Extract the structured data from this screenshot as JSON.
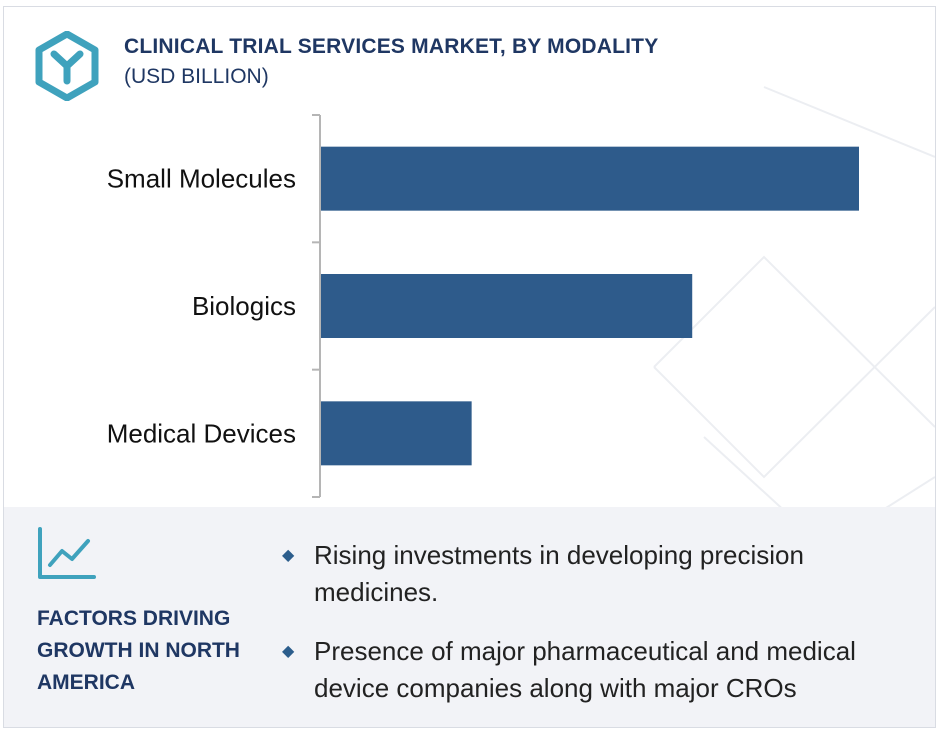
{
  "header": {
    "title": "CLINICAL TRIAL SERVICES MARKET, BY MODALITY",
    "subtitle": "(USD BILLION)"
  },
  "chart_data": {
    "type": "bar",
    "orientation": "horizontal",
    "categories": [
      "Small Molecules",
      "Biologics",
      "Medical Devices"
    ],
    "values": [
      100,
      69,
      28
    ],
    "value_note": "relative bar lengths; no values printed",
    "title": "CLINICAL TRIAL SERVICES MARKET, BY MODALITY",
    "subtitle": "(USD BILLION)",
    "xlabel": "",
    "ylabel": "",
    "grid": false,
    "bar_color": "#2e5b8b"
  },
  "factors": {
    "title": "FACTORS DRIVING GROWTH IN NORTH AMERICA",
    "items": [
      "Rising investments in developing precision medicines.",
      "Presence of major pharmaceutical and medical device companies along with major CROs"
    ]
  },
  "icons": {
    "logo": "hexagon-y-logo-icon",
    "trend": "trend-chart-icon",
    "bullet": "diamond-bullet-icon"
  },
  "colors": {
    "brand_navy": "#1f3763",
    "bar": "#2e5b8b",
    "logo_teal": "#3fa2bd",
    "panel_bg": "#f2f3f7"
  }
}
